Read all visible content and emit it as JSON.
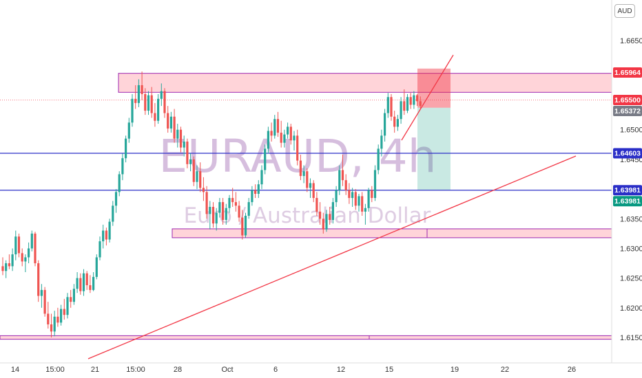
{
  "chart_data": {
    "type": "candlestick",
    "symbol_watermark": "EURAUD, 4h",
    "description_watermark": "Euro / Australian Dollar",
    "currency_label": "AUD",
    "y_axis": {
      "ylim": [
        1.6148,
        1.6702
      ],
      "ticks": [
        "1.66500",
        "1.65500",
        "1.65000",
        "1.64500",
        "1.63500",
        "1.63000",
        "1.62500",
        "1.62000",
        "1.61500"
      ]
    },
    "x_axis": {
      "ticks": [
        "14",
        "15:00",
        "21",
        "15:00",
        "28",
        "Oct",
        "6",
        "12",
        "15",
        "19",
        "22",
        "26"
      ]
    },
    "price_badges": [
      {
        "label": "1.65964",
        "value": 1.65964,
        "color": "#f23645"
      },
      {
        "label": "1.65500",
        "value": 1.655,
        "color": "#f23645"
      },
      {
        "label": "1.65372",
        "value": 1.65372,
        "color": "#787b86"
      },
      {
        "label": "1.64603",
        "value": 1.64603,
        "color": "#2a2ec7"
      },
      {
        "label": "1.63981",
        "value": 1.63981,
        "color": "#2a2ec7"
      },
      {
        "label": "1.63981",
        "value": 1.63981,
        "color": "#089981"
      }
    ],
    "horizontal_levels": [
      1.64603,
      1.63981
    ],
    "zones": [
      {
        "name": "resistance",
        "low": 1.6563,
        "high": 1.6595
      },
      {
        "name": "support",
        "low": 1.6318,
        "high": 1.6333
      },
      {
        "name": "bottom",
        "low": 1.6147,
        "high": 1.6153
      }
    ],
    "short_position": {
      "entry": 1.6537,
      "stop": 1.6603,
      "target": 1.63981
    },
    "colors": {
      "up": "#26a69a",
      "down": "#ef5350",
      "zone_fill": "#ffcdd2",
      "zone_border": "#9c27b0",
      "trendline": "#f23645",
      "level": "#2a2ec7"
    },
    "candles": [
      {
        "o": 1.627,
        "h": 1.6285,
        "l": 1.6255,
        "c": 1.6262
      },
      {
        "o": 1.6262,
        "h": 1.628,
        "l": 1.625,
        "c": 1.6275
      },
      {
        "o": 1.6275,
        "h": 1.629,
        "l": 1.6265,
        "c": 1.627
      },
      {
        "o": 1.627,
        "h": 1.63,
        "l": 1.6262,
        "c": 1.629
      },
      {
        "o": 1.629,
        "h": 1.633,
        "l": 1.628,
        "c": 1.632
      },
      {
        "o": 1.632,
        "h": 1.6325,
        "l": 1.6285,
        "c": 1.6292
      },
      {
        "o": 1.6292,
        "h": 1.63,
        "l": 1.627,
        "c": 1.6278
      },
      {
        "o": 1.6278,
        "h": 1.629,
        "l": 1.626,
        "c": 1.6285
      },
      {
        "o": 1.6285,
        "h": 1.631,
        "l": 1.6275,
        "c": 1.63
      },
      {
        "o": 1.63,
        "h": 1.633,
        "l": 1.6295,
        "c": 1.6325
      },
      {
        "o": 1.6325,
        "h": 1.6328,
        "l": 1.627,
        "c": 1.6275
      },
      {
        "o": 1.6275,
        "h": 1.628,
        "l": 1.621,
        "c": 1.622
      },
      {
        "o": 1.622,
        "h": 1.624,
        "l": 1.62,
        "c": 1.623
      },
      {
        "o": 1.623,
        "h": 1.6235,
        "l": 1.6185,
        "c": 1.619
      },
      {
        "o": 1.619,
        "h": 1.621,
        "l": 1.6165,
        "c": 1.6172
      },
      {
        "o": 1.6172,
        "h": 1.619,
        "l": 1.615,
        "c": 1.616
      },
      {
        "o": 1.616,
        "h": 1.6195,
        "l": 1.6152,
        "c": 1.6185
      },
      {
        "o": 1.6185,
        "h": 1.62,
        "l": 1.6168,
        "c": 1.6175
      },
      {
        "o": 1.6175,
        "h": 1.6205,
        "l": 1.617,
        "c": 1.6198
      },
      {
        "o": 1.6198,
        "h": 1.6215,
        "l": 1.618,
        "c": 1.6188
      },
      {
        "o": 1.6188,
        "h": 1.6225,
        "l": 1.6182,
        "c": 1.6218
      },
      {
        "o": 1.6218,
        "h": 1.623,
        "l": 1.62,
        "c": 1.621
      },
      {
        "o": 1.621,
        "h": 1.624,
        "l": 1.6205,
        "c": 1.6232
      },
      {
        "o": 1.6232,
        "h": 1.626,
        "l": 1.6225,
        "c": 1.625
      },
      {
        "o": 1.625,
        "h": 1.6258,
        "l": 1.6222,
        "c": 1.6228
      },
      {
        "o": 1.6228,
        "h": 1.6265,
        "l": 1.622,
        "c": 1.6258
      },
      {
        "o": 1.6258,
        "h": 1.6262,
        "l": 1.623,
        "c": 1.6238
      },
      {
        "o": 1.6238,
        "h": 1.6255,
        "l": 1.6225,
        "c": 1.623
      },
      {
        "o": 1.623,
        "h": 1.626,
        "l": 1.6228,
        "c": 1.6252
      },
      {
        "o": 1.6252,
        "h": 1.629,
        "l": 1.6248,
        "c": 1.6285
      },
      {
        "o": 1.6285,
        "h": 1.632,
        "l": 1.628,
        "c": 1.6312
      },
      {
        "o": 1.6312,
        "h": 1.634,
        "l": 1.63,
        "c": 1.633
      },
      {
        "o": 1.633,
        "h": 1.6335,
        "l": 1.6305,
        "c": 1.6315
      },
      {
        "o": 1.6315,
        "h": 1.635,
        "l": 1.631,
        "c": 1.6345
      },
      {
        "o": 1.6345,
        "h": 1.638,
        "l": 1.6338,
        "c": 1.6372
      },
      {
        "o": 1.6372,
        "h": 1.64,
        "l": 1.636,
        "c": 1.6395
      },
      {
        "o": 1.6395,
        "h": 1.643,
        "l": 1.6388,
        "c": 1.6425
      },
      {
        "o": 1.6425,
        "h": 1.646,
        "l": 1.6415,
        "c": 1.6452
      },
      {
        "o": 1.6452,
        "h": 1.649,
        "l": 1.6445,
        "c": 1.6485
      },
      {
        "o": 1.6485,
        "h": 1.652,
        "l": 1.6478,
        "c": 1.6512
      },
      {
        "o": 1.6512,
        "h": 1.656,
        "l": 1.6505,
        "c": 1.6552
      },
      {
        "o": 1.6552,
        "h": 1.6575,
        "l": 1.6535,
        "c": 1.6545
      },
      {
        "o": 1.6545,
        "h": 1.6585,
        "l": 1.6538,
        "c": 1.6575
      },
      {
        "o": 1.6575,
        "h": 1.6598,
        "l": 1.655,
        "c": 1.656
      },
      {
        "o": 1.656,
        "h": 1.657,
        "l": 1.6525,
        "c": 1.6532
      },
      {
        "o": 1.6532,
        "h": 1.6565,
        "l": 1.6525,
        "c": 1.6558
      },
      {
        "o": 1.6558,
        "h": 1.6572,
        "l": 1.652,
        "c": 1.6528
      },
      {
        "o": 1.6528,
        "h": 1.6545,
        "l": 1.6505,
        "c": 1.6515
      },
      {
        "o": 1.6515,
        "h": 1.656,
        "l": 1.651,
        "c": 1.6552
      },
      {
        "o": 1.6552,
        "h": 1.6578,
        "l": 1.654,
        "c": 1.6565
      },
      {
        "o": 1.6565,
        "h": 1.657,
        "l": 1.652,
        "c": 1.6528
      },
      {
        "o": 1.6528,
        "h": 1.654,
        "l": 1.6495,
        "c": 1.6502
      },
      {
        "o": 1.6502,
        "h": 1.653,
        "l": 1.6495,
        "c": 1.6522
      },
      {
        "o": 1.6522,
        "h": 1.6535,
        "l": 1.6478,
        "c": 1.6485
      },
      {
        "o": 1.6485,
        "h": 1.651,
        "l": 1.647,
        "c": 1.65
      },
      {
        "o": 1.65,
        "h": 1.6505,
        "l": 1.6462,
        "c": 1.647
      },
      {
        "o": 1.647,
        "h": 1.649,
        "l": 1.6455,
        "c": 1.648
      },
      {
        "o": 1.648,
        "h": 1.6485,
        "l": 1.6435,
        "c": 1.6442
      },
      {
        "o": 1.6442,
        "h": 1.646,
        "l": 1.643,
        "c": 1.645
      },
      {
        "o": 1.645,
        "h": 1.6455,
        "l": 1.6405,
        "c": 1.6412
      },
      {
        "o": 1.6412,
        "h": 1.644,
        "l": 1.64,
        "c": 1.643
      },
      {
        "o": 1.643,
        "h": 1.6445,
        "l": 1.6395,
        "c": 1.6402
      },
      {
        "o": 1.6402,
        "h": 1.642,
        "l": 1.638,
        "c": 1.6395
      },
      {
        "o": 1.6395,
        "h": 1.6405,
        "l": 1.635,
        "c": 1.6358
      },
      {
        "o": 1.6358,
        "h": 1.638,
        "l": 1.6332,
        "c": 1.637
      },
      {
        "o": 1.637,
        "h": 1.6378,
        "l": 1.6335,
        "c": 1.6342
      },
      {
        "o": 1.6342,
        "h": 1.6368,
        "l": 1.633,
        "c": 1.636
      },
      {
        "o": 1.636,
        "h": 1.6385,
        "l": 1.6352,
        "c": 1.6378
      },
      {
        "o": 1.6378,
        "h": 1.6385,
        "l": 1.634,
        "c": 1.6348
      },
      {
        "o": 1.6348,
        "h": 1.6375,
        "l": 1.634,
        "c": 1.6368
      },
      {
        "o": 1.6368,
        "h": 1.639,
        "l": 1.636,
        "c": 1.6385
      },
      {
        "o": 1.6385,
        "h": 1.6402,
        "l": 1.637,
        "c": 1.6378
      },
      {
        "o": 1.6378,
        "h": 1.6395,
        "l": 1.6362,
        "c": 1.6372
      },
      {
        "o": 1.6372,
        "h": 1.638,
        "l": 1.6345,
        "c": 1.6352
      },
      {
        "o": 1.6352,
        "h": 1.6365,
        "l": 1.6315,
        "c": 1.6322
      },
      {
        "o": 1.6322,
        "h": 1.636,
        "l": 1.6318,
        "c": 1.6355
      },
      {
        "o": 1.6355,
        "h": 1.6385,
        "l": 1.635,
        "c": 1.6378
      },
      {
        "o": 1.6378,
        "h": 1.6405,
        "l": 1.6372,
        "c": 1.6398
      },
      {
        "o": 1.6398,
        "h": 1.6408,
        "l": 1.6385,
        "c": 1.6392
      },
      {
        "o": 1.6392,
        "h": 1.6415,
        "l": 1.6385,
        "c": 1.6408
      },
      {
        "o": 1.6408,
        "h": 1.644,
        "l": 1.64,
        "c": 1.6432
      },
      {
        "o": 1.6432,
        "h": 1.6475,
        "l": 1.6425,
        "c": 1.6468
      },
      {
        "o": 1.6468,
        "h": 1.6505,
        "l": 1.646,
        "c": 1.6498
      },
      {
        "o": 1.6498,
        "h": 1.6512,
        "l": 1.648,
        "c": 1.649
      },
      {
        "o": 1.649,
        "h": 1.6525,
        "l": 1.6485,
        "c": 1.6518
      },
      {
        "o": 1.6518,
        "h": 1.653,
        "l": 1.6488,
        "c": 1.6495
      },
      {
        "o": 1.6495,
        "h": 1.6515,
        "l": 1.647,
        "c": 1.6478
      },
      {
        "o": 1.6478,
        "h": 1.65,
        "l": 1.647,
        "c": 1.6492
      },
      {
        "o": 1.6492,
        "h": 1.6512,
        "l": 1.6485,
        "c": 1.6505
      },
      {
        "o": 1.6505,
        "h": 1.651,
        "l": 1.6475,
        "c": 1.6482
      },
      {
        "o": 1.6482,
        "h": 1.6498,
        "l": 1.6465,
        "c": 1.649
      },
      {
        "o": 1.649,
        "h": 1.65,
        "l": 1.644,
        "c": 1.6448
      },
      {
        "o": 1.6448,
        "h": 1.6458,
        "l": 1.6415,
        "c": 1.6422
      },
      {
        "o": 1.6422,
        "h": 1.644,
        "l": 1.641,
        "c": 1.643
      },
      {
        "o": 1.643,
        "h": 1.6435,
        "l": 1.6395,
        "c": 1.6402
      },
      {
        "o": 1.6402,
        "h": 1.6418,
        "l": 1.6385,
        "c": 1.641
      },
      {
        "o": 1.641,
        "h": 1.6415,
        "l": 1.6378,
        "c": 1.6385
      },
      {
        "o": 1.6385,
        "h": 1.6395,
        "l": 1.6355,
        "c": 1.6362
      },
      {
        "o": 1.6362,
        "h": 1.6378,
        "l": 1.634,
        "c": 1.635
      },
      {
        "o": 1.635,
        "h": 1.636,
        "l": 1.6325,
        "c": 1.6332
      },
      {
        "o": 1.6332,
        "h": 1.6365,
        "l": 1.6328,
        "c": 1.6358
      },
      {
        "o": 1.6358,
        "h": 1.637,
        "l": 1.634,
        "c": 1.6348
      },
      {
        "o": 1.6348,
        "h": 1.6385,
        "l": 1.6342,
        "c": 1.6378
      },
      {
        "o": 1.6378,
        "h": 1.6405,
        "l": 1.637,
        "c": 1.6398
      },
      {
        "o": 1.6398,
        "h": 1.644,
        "l": 1.639,
        "c": 1.6432
      },
      {
        "o": 1.6432,
        "h": 1.6458,
        "l": 1.6405,
        "c": 1.6415
      },
      {
        "o": 1.6415,
        "h": 1.6425,
        "l": 1.639,
        "c": 1.6398
      },
      {
        "o": 1.6398,
        "h": 1.641,
        "l": 1.6375,
        "c": 1.6385
      },
      {
        "o": 1.6385,
        "h": 1.6402,
        "l": 1.637,
        "c": 1.6395
      },
      {
        "o": 1.6395,
        "h": 1.64,
        "l": 1.6365,
        "c": 1.6372
      },
      {
        "o": 1.6372,
        "h": 1.6392,
        "l": 1.6362,
        "c": 1.6388
      },
      {
        "o": 1.6388,
        "h": 1.6395,
        "l": 1.6355,
        "c": 1.6362
      },
      {
        "o": 1.6362,
        "h": 1.6375,
        "l": 1.634,
        "c": 1.6368
      },
      {
        "o": 1.6368,
        "h": 1.6402,
        "l": 1.6362,
        "c": 1.6398
      },
      {
        "o": 1.6398,
        "h": 1.6405,
        "l": 1.6378,
        "c": 1.6385
      },
      {
        "o": 1.6385,
        "h": 1.644,
        "l": 1.638,
        "c": 1.6432
      },
      {
        "o": 1.6432,
        "h": 1.6475,
        "l": 1.6425,
        "c": 1.6468
      },
      {
        "o": 1.6468,
        "h": 1.65,
        "l": 1.6455,
        "c": 1.649
      },
      {
        "o": 1.649,
        "h": 1.6535,
        "l": 1.648,
        "c": 1.6528
      },
      {
        "o": 1.6528,
        "h": 1.6562,
        "l": 1.652,
        "c": 1.6555
      },
      {
        "o": 1.6555,
        "h": 1.656,
        "l": 1.6515,
        "c": 1.6522
      },
      {
        "o": 1.6522,
        "h": 1.6532,
        "l": 1.6495,
        "c": 1.6505
      },
      {
        "o": 1.6505,
        "h": 1.6525,
        "l": 1.6498,
        "c": 1.6518
      },
      {
        "o": 1.6518,
        "h": 1.6555,
        "l": 1.651,
        "c": 1.6548
      },
      {
        "o": 1.6548,
        "h": 1.6568,
        "l": 1.6525,
        "c": 1.6532
      },
      {
        "o": 1.6532,
        "h": 1.656,
        "l": 1.6528,
        "c": 1.6555
      },
      {
        "o": 1.6555,
        "h": 1.6562,
        "l": 1.6535,
        "c": 1.6542
      },
      {
        "o": 1.6542,
        "h": 1.6565,
        "l": 1.6535,
        "c": 1.6558
      },
      {
        "o": 1.6558,
        "h": 1.656,
        "l": 1.654,
        "c": 1.6548
      },
      {
        "o": 1.6548,
        "h": 1.6556,
        "l": 1.6536,
        "c": 1.654
      }
    ]
  }
}
